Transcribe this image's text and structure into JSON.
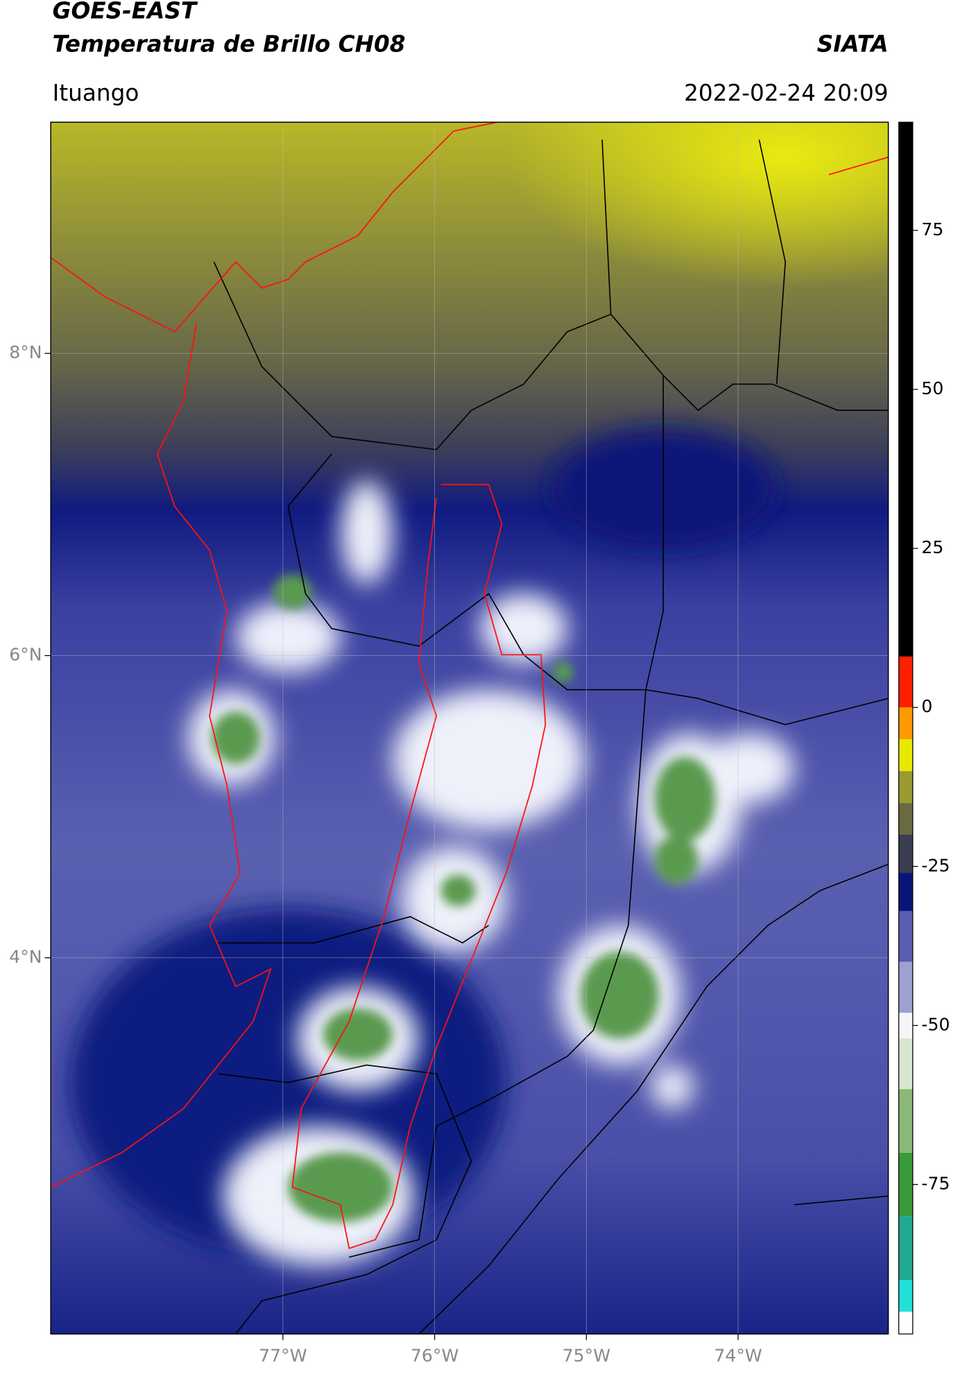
{
  "header": {
    "title": "GOES-EAST",
    "subtitle": "Temperatura de Brillo CH08",
    "source": "SIATA",
    "location": "Ituango",
    "timestamp": "2022-02-24 20:09"
  },
  "map": {
    "xlim": [
      -78.53,
      -73.01
    ],
    "ylim": [
      1.51,
      9.53
    ],
    "xticks": [
      {
        "value": -77,
        "label": "77°W"
      },
      {
        "value": -76,
        "label": "76°W"
      },
      {
        "value": -75,
        "label": "75°W"
      },
      {
        "value": -74,
        "label": "74°W"
      }
    ],
    "yticks": [
      {
        "value": 8,
        "label": "8°N"
      },
      {
        "value": 6,
        "label": "6°N"
      },
      {
        "value": 4,
        "label": "4°N"
      }
    ],
    "grid": true
  },
  "colorbar": {
    "clim": [
      -98.5,
      92
    ],
    "ticks": [
      75,
      50,
      25,
      0,
      -25,
      -50,
      -75
    ],
    "bounds": [
      -98.5,
      -95,
      -90,
      -80,
      -70,
      -60,
      -52,
      -48,
      -40,
      -32,
      -26,
      -20,
      -15,
      -10,
      -5,
      0,
      8,
      92
    ],
    "colors": [
      "#ffffff",
      "#20e0d8",
      "#20a890",
      "#3a9a3a",
      "#8ab878",
      "#d8e8d0",
      "#f4f4fa",
      "#9ea0d0",
      "#5a5eb0",
      "#0a1478",
      "#3a3c50",
      "#6a6a40",
      "#9a9a30",
      "#e8e800",
      "#ff9900",
      "#ff2000",
      "#000000"
    ]
  }
}
